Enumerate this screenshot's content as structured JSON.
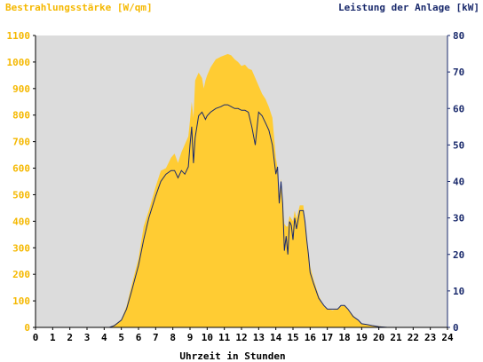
{
  "chart_data": {
    "type": "area",
    "ylabel_left": "Bestrahlungsstärke [W/qm]",
    "ylabel_right": "Leistung der Anlage [kW]",
    "xlabel": "Uhrzeit in Stunden",
    "xlim": [
      0,
      24
    ],
    "ylim_left": [
      0,
      1100
    ],
    "ylim_right": [
      0,
      80
    ],
    "x_ticks": [
      "0",
      "1",
      "2",
      "3",
      "4",
      "5",
      "6",
      "7",
      "8",
      "9",
      "10",
      "11",
      "12",
      "13",
      "14",
      "15",
      "16",
      "17",
      "18",
      "19",
      "20",
      "21",
      "22",
      "23",
      "24"
    ],
    "y_ticks_left": [
      "0",
      "100",
      "200",
      "300",
      "400",
      "500",
      "600",
      "700",
      "800",
      "900",
      "1000",
      "1100"
    ],
    "y_ticks_right": [
      "0",
      "10",
      "20",
      "30",
      "40",
      "50",
      "60",
      "70",
      "80"
    ],
    "grid": false,
    "series": [
      {
        "name": "Bestrahlungsstärke [W/qm]",
        "axis": "left",
        "style": "area",
        "color": "#ffcc33",
        "x": [
          0,
          4.3,
          4.6,
          5.0,
          5.3,
          5.6,
          6.0,
          6.3,
          6.6,
          7.0,
          7.3,
          7.6,
          7.9,
          8.1,
          8.3,
          8.5,
          8.7,
          8.9,
          9.0,
          9.1,
          9.2,
          9.3,
          9.5,
          9.7,
          9.8,
          9.9,
          10.0,
          10.2,
          10.5,
          10.8,
          11.0,
          11.2,
          11.4,
          11.6,
          11.8,
          12.0,
          12.2,
          12.4,
          12.6,
          12.8,
          13.0,
          13.2,
          13.4,
          13.6,
          13.8,
          14.0,
          14.1,
          14.2,
          14.3,
          14.4,
          14.5,
          14.6,
          14.7,
          14.8,
          14.9,
          15.0,
          15.1,
          15.2,
          15.4,
          15.6,
          15.7,
          15.8,
          15.9,
          16.0,
          16.2,
          16.5,
          16.8,
          17.0,
          17.3,
          17.6,
          17.8,
          18.0,
          18.2,
          18.5,
          18.8,
          19.0,
          19.3,
          19.6,
          20.0,
          20.5,
          24
        ],
        "y": [
          0,
          0,
          10,
          30,
          80,
          160,
          260,
          380,
          440,
          530,
          590,
          600,
          640,
          655,
          620,
          660,
          690,
          720,
          780,
          850,
          790,
          930,
          960,
          940,
          900,
          930,
          950,
          980,
          1010,
          1020,
          1025,
          1030,
          1025,
          1010,
          1000,
          985,
          990,
          975,
          970,
          940,
          910,
          880,
          860,
          830,
          790,
          640,
          600,
          500,
          560,
          470,
          390,
          380,
          380,
          420,
          410,
          400,
          440,
          410,
          460,
          460,
          400,
          330,
          290,
          230,
          180,
          120,
          80,
          70,
          65,
          70,
          80,
          85,
          70,
          45,
          25,
          15,
          10,
          8,
          5,
          0,
          0
        ]
      },
      {
        "name": "Leistung der Anlage [kW]",
        "axis": "right",
        "style": "line",
        "color": "#1a2a6c",
        "x": [
          0,
          4.3,
          4.6,
          5.0,
          5.3,
          5.6,
          6.0,
          6.3,
          6.6,
          7.0,
          7.3,
          7.6,
          7.9,
          8.1,
          8.3,
          8.5,
          8.7,
          8.9,
          9.0,
          9.1,
          9.2,
          9.3,
          9.5,
          9.7,
          9.8,
          9.9,
          10.0,
          10.2,
          10.5,
          10.8,
          11.0,
          11.2,
          11.4,
          11.6,
          11.8,
          12.0,
          12.2,
          12.4,
          12.6,
          12.8,
          13.0,
          13.2,
          13.4,
          13.6,
          13.8,
          14.0,
          14.1,
          14.2,
          14.3,
          14.4,
          14.5,
          14.6,
          14.7,
          14.8,
          14.9,
          15.0,
          15.1,
          15.2,
          15.4,
          15.6,
          15.7,
          15.8,
          15.9,
          16.0,
          16.2,
          16.5,
          16.8,
          17.0,
          17.3,
          17.6,
          17.8,
          18.0,
          18.2,
          18.5,
          18.8,
          19.0,
          19.3,
          19.6,
          20.0,
          20.5,
          24
        ],
        "y": [
          0,
          0,
          0.5,
          2,
          5,
          10,
          17,
          24,
          30,
          36,
          40,
          42,
          43,
          43,
          41,
          43,
          42,
          44,
          50,
          55,
          45,
          52,
          58,
          59,
          58,
          57,
          58,
          59,
          60,
          60.5,
          61,
          61,
          60.5,
          60,
          60,
          59.5,
          59.5,
          59,
          55,
          50,
          59,
          58,
          56,
          54,
          50,
          42,
          44,
          34,
          40,
          34,
          21,
          25,
          20,
          29,
          28,
          24,
          30,
          27,
          32,
          32,
          29,
          24,
          20,
          15,
          12,
          8,
          6,
          5,
          5,
          5,
          6,
          6,
          5,
          3,
          2,
          1,
          0.8,
          0.5,
          0.2,
          0,
          0
        ]
      }
    ]
  }
}
